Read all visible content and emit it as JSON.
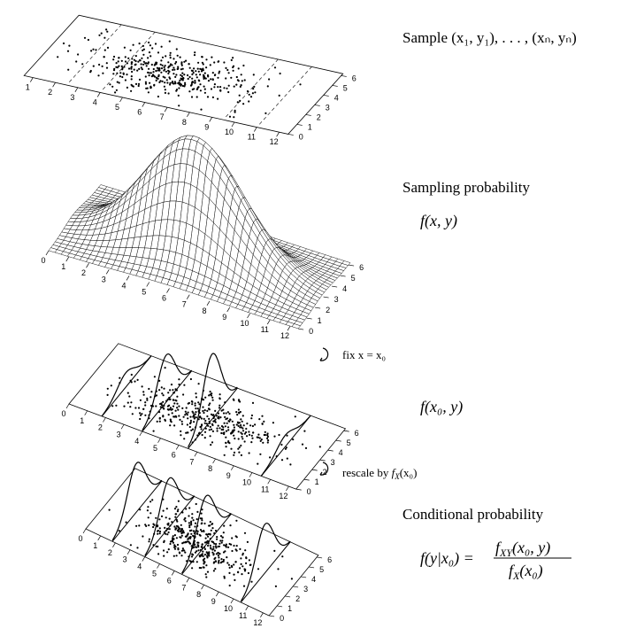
{
  "panels": [
    {
      "xticks": [
        1,
        2,
        3,
        4,
        5,
        6,
        7,
        8,
        9,
        10,
        11,
        12
      ],
      "yticks": [
        0,
        1,
        2,
        3,
        4,
        5,
        6
      ]
    },
    {
      "xticks": [
        0,
        1,
        2,
        3,
        4,
        5,
        6,
        7,
        8,
        9,
        10,
        11,
        12
      ],
      "yticks": [
        0,
        1,
        2,
        3,
        4,
        5,
        6
      ]
    },
    {
      "xticks": [
        0,
        1,
        2,
        3,
        4,
        5,
        6,
        7,
        8,
        9,
        10,
        11,
        12
      ],
      "yticks": [
        0,
        1,
        2,
        3,
        4,
        5,
        6
      ]
    },
    {
      "xticks": [
        0,
        1,
        2,
        3,
        4,
        5,
        6,
        7,
        8,
        9,
        10,
        11,
        12
      ],
      "yticks": [
        0,
        1,
        2,
        3,
        4,
        5,
        6
      ]
    }
  ],
  "labels": {
    "sample": "Sample (x₁, y₁), . . . , (xₙ, yₙ)",
    "sampling": "Sampling probability",
    "joint": "f(x, y)",
    "fix": "fix x = x₀",
    "slice": "f(x₀, y)",
    "rescale": {
      "text": "rescale by ",
      "f": "f",
      "sub": "X",
      "args": "(x₀)"
    },
    "conditional": "Conditional probability",
    "formula": {
      "lhs": "f(y|x₀) =",
      "num": {
        "f": "f",
        "sub": "XY",
        "args": "(x₀, y)"
      },
      "den": {
        "f": "f",
        "sub": "X",
        "args": "(x₀)"
      }
    }
  }
}
